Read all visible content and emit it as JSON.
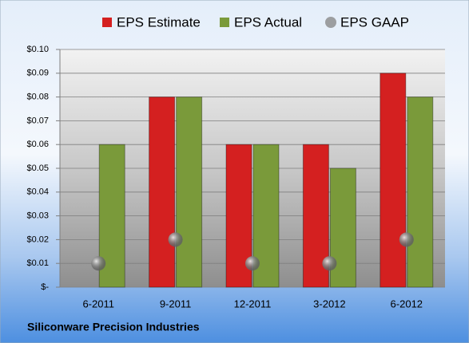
{
  "chart_data": {
    "type": "bar",
    "title": "Siliconware Precision Industries",
    "categories": [
      "6-2011",
      "9-2011",
      "12-2011",
      "3-2012",
      "6-2012"
    ],
    "series": [
      {
        "name": "EPS Estimate",
        "type": "bar",
        "color": "#d42020",
        "values": [
          null,
          0.08,
          0.06,
          0.06,
          0.09
        ]
      },
      {
        "name": "EPS Actual",
        "type": "bar",
        "color": "#7a9a3a",
        "values": [
          0.06,
          0.08,
          0.06,
          0.05,
          0.08
        ]
      },
      {
        "name": "EPS GAAP",
        "type": "scatter",
        "color": "#8a8a8a",
        "values": [
          0.01,
          0.02,
          0.01,
          0.01,
          0.02
        ]
      }
    ],
    "ylim": [
      0,
      0.1
    ],
    "yticks": [
      {
        "value": 0,
        "label": "$-"
      },
      {
        "value": 0.01,
        "label": "$0.01"
      },
      {
        "value": 0.02,
        "label": "$0.02"
      },
      {
        "value": 0.03,
        "label": "$0.03"
      },
      {
        "value": 0.04,
        "label": "$0.04"
      },
      {
        "value": 0.05,
        "label": "$0.05"
      },
      {
        "value": 0.06,
        "label": "$0.06"
      },
      {
        "value": 0.07,
        "label": "$0.07"
      },
      {
        "value": 0.08,
        "label": "$0.08"
      },
      {
        "value": 0.09,
        "label": "$0.09"
      },
      {
        "value": 0.1,
        "label": "$0.10"
      }
    ],
    "grid": true,
    "legend": "top"
  }
}
